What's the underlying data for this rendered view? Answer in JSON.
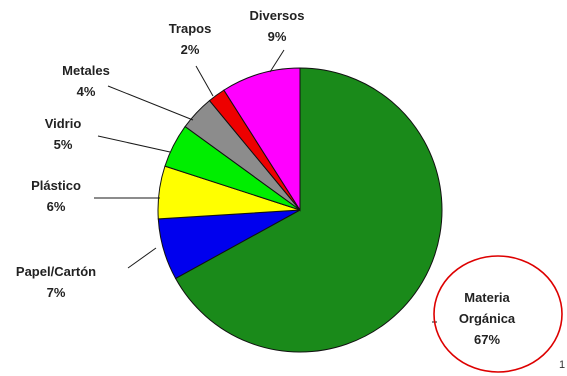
{
  "chart_data": {
    "type": "pie",
    "start_angle_deg": 0,
    "direction": "clockwise",
    "slices": [
      {
        "label_lines": [
          "Materia",
          "Orgánica"
        ],
        "value_text": "67%",
        "value": 67,
        "color": "#1a8a1a"
      },
      {
        "label_lines": [
          "Papel/Cartón"
        ],
        "value_text": "7%",
        "value": 7,
        "color": "#0000ee"
      },
      {
        "label_lines": [
          "Plástico"
        ],
        "value_text": "6%",
        "value": 6,
        "color": "#ffff00"
      },
      {
        "label_lines": [
          "Vidrio"
        ],
        "value_text": "5%",
        "value": 5,
        "color": "#00ee00"
      },
      {
        "label_lines": [
          "Metales"
        ],
        "value_text": "4%",
        "value": 4,
        "color": "#8c8c8c"
      },
      {
        "label_lines": [
          "Trapos"
        ],
        "value_text": "2%",
        "value": 2,
        "color": "#ee0000"
      },
      {
        "label_lines": [
          "Diversos"
        ],
        "value_text": "9%",
        "value": 9,
        "color": "#ff00ff"
      }
    ],
    "highlight": {
      "slice_index": 0,
      "shape": "ellipse",
      "color": "#dd0000"
    },
    "corner_text": "1"
  }
}
